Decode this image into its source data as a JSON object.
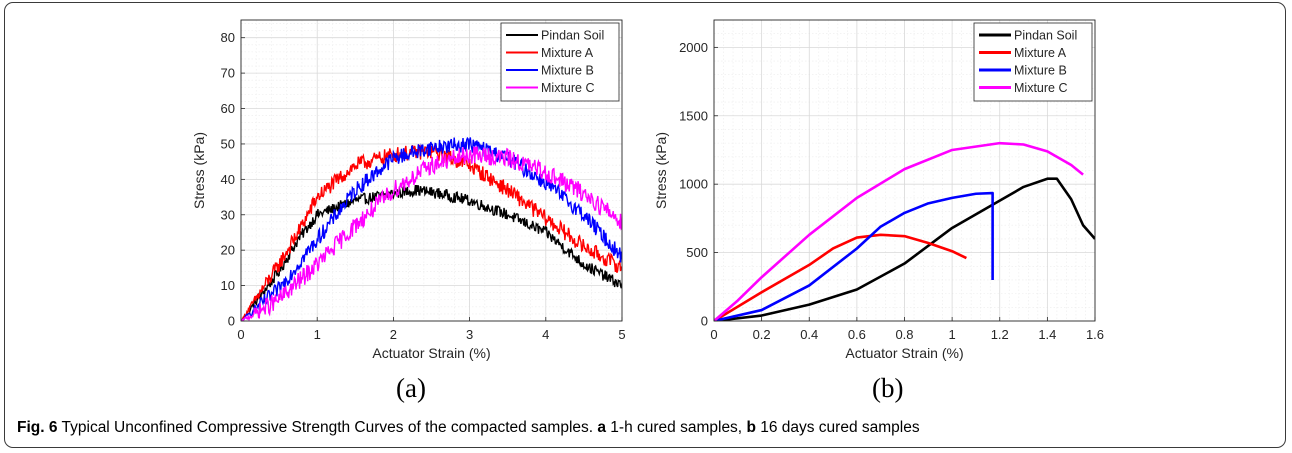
{
  "chart_data": [
    {
      "type": "line",
      "panel_label": "(a)",
      "xlabel": "Actuator Strain (%)",
      "ylabel": "Stress (kPa)",
      "xlim": [
        0,
        5
      ],
      "ylim": [
        0,
        85
      ],
      "xticks": [
        0,
        1,
        2,
        3,
        4,
        5
      ],
      "xtick_labels": [
        "0",
        "1",
        "2",
        "3",
        "4",
        "5"
      ],
      "yticks": [
        0,
        10,
        20,
        30,
        40,
        50,
        60,
        70,
        80
      ],
      "ytick_labels": [
        "0",
        "10",
        "20",
        "30",
        "40",
        "50",
        "60",
        "70",
        "80"
      ],
      "grid": true,
      "minor_grid": true,
      "legend_position": "top-right",
      "noise": [
        1.6,
        2.2,
        2.2,
        2.6
      ],
      "series": [
        {
          "name": "Pindan Soil",
          "color": "#000000",
          "x": [
            0,
            0.25,
            0.5,
            0.75,
            1.0,
            1.5,
            2.0,
            2.3,
            2.6,
            3.0,
            3.5,
            4.0,
            4.5,
            5.0
          ],
          "y": [
            0,
            7,
            14,
            23,
            30,
            34,
            36,
            37,
            36,
            34,
            30,
            25,
            16,
            10
          ]
        },
        {
          "name": "Mixture A",
          "color": "#ff0000",
          "x": [
            0,
            0.25,
            0.5,
            0.75,
            1.0,
            1.5,
            2.0,
            2.5,
            3.0,
            3.5,
            4.0,
            4.5,
            5.0
          ],
          "y": [
            0,
            8,
            16,
            25,
            35,
            44,
            47,
            48,
            44,
            37,
            29,
            21,
            15
          ]
        },
        {
          "name": "Mixture B",
          "color": "#0000ff",
          "x": [
            0,
            0.5,
            1.0,
            1.5,
            2.0,
            2.5,
            3.0,
            3.5,
            4.0,
            4.5,
            5.0
          ],
          "y": [
            0,
            9,
            23,
            37,
            46,
            49,
            50,
            46,
            39,
            30,
            18
          ]
        },
        {
          "name": "Mixture C",
          "color": "#ff00ff",
          "x": [
            0,
            0.5,
            1.0,
            1.5,
            2.0,
            2.5,
            3.0,
            3.5,
            4.0,
            4.5,
            5.0
          ],
          "y": [
            0,
            6,
            16,
            27,
            37,
            44,
            47,
            46,
            42,
            36,
            28
          ]
        }
      ]
    },
    {
      "type": "line",
      "panel_label": "(b)",
      "xlabel": "Actuator Strain (%)",
      "ylabel": "Stress (kPa)",
      "xlim": [
        0,
        1.6
      ],
      "ylim": [
        0,
        2200
      ],
      "xticks": [
        0,
        0.2,
        0.4,
        0.6,
        0.8,
        1.0,
        1.2,
        1.4,
        1.6
      ],
      "xtick_labels": [
        "0",
        "0.2",
        "0.4",
        "0.6",
        "0.8",
        "1",
        "1.2",
        "1.4",
        "1.6"
      ],
      "yticks": [
        0,
        500,
        1000,
        1500,
        2000
      ],
      "ytick_labels": [
        "0",
        "500",
        "1000",
        "1500",
        "2000"
      ],
      "grid": true,
      "minor_grid": true,
      "legend_position": "top-right",
      "series": [
        {
          "name": "Pindan Soil",
          "color": "#000000",
          "x": [
            0,
            0.2,
            0.4,
            0.6,
            0.8,
            1.0,
            1.2,
            1.3,
            1.4,
            1.44,
            1.5,
            1.55,
            1.6
          ],
          "y": [
            0,
            40,
            120,
            230,
            420,
            680,
            880,
            980,
            1040,
            1040,
            890,
            700,
            600
          ]
        },
        {
          "name": "Mixture A",
          "color": "#ff0000",
          "x": [
            0,
            0.2,
            0.4,
            0.5,
            0.6,
            0.7,
            0.8,
            0.9,
            1.0,
            1.06
          ],
          "y": [
            0,
            210,
            410,
            530,
            610,
            630,
            620,
            570,
            510,
            460
          ]
        },
        {
          "name": "Mixture B",
          "color": "#0000ff",
          "x": [
            0,
            0.2,
            0.4,
            0.6,
            0.7,
            0.8,
            0.9,
            1.0,
            1.1,
            1.17,
            1.17,
            1.17
          ],
          "y": [
            0,
            80,
            260,
            530,
            690,
            790,
            860,
            900,
            930,
            935,
            600,
            300
          ]
        },
        {
          "name": "Mixture C",
          "color": "#ff00ff",
          "x": [
            0,
            0.1,
            0.2,
            0.4,
            0.6,
            0.8,
            1.0,
            1.2,
            1.3,
            1.4,
            1.5,
            1.55
          ],
          "y": [
            0,
            150,
            320,
            630,
            900,
            1110,
            1250,
            1300,
            1290,
            1240,
            1140,
            1070
          ]
        }
      ]
    }
  ],
  "caption": {
    "figure_label": "Fig. 6",
    "text": " Typical Unconfined Compressive Strength Curves of the compacted samples. ",
    "part_a_label": "a",
    "part_a_text": " 1-h cured samples, ",
    "part_b_label": "b",
    "part_b_text": " 16 days cured samples"
  }
}
